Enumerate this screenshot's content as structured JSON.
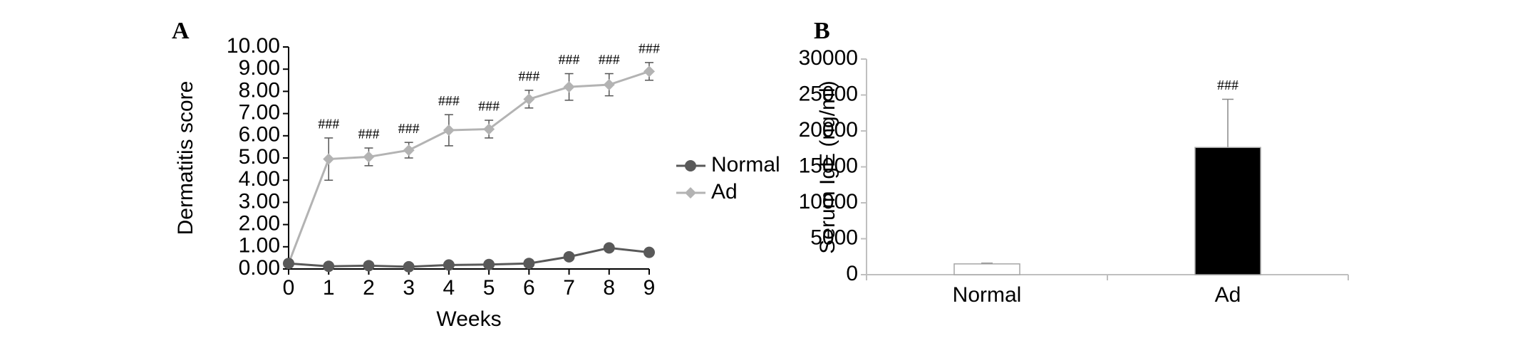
{
  "chart_data": [
    {
      "type": "line",
      "panel": "A",
      "y_label": "Dermatitis score",
      "x_label": "Weeks",
      "x": [
        0,
        1,
        2,
        3,
        4,
        5,
        6,
        7,
        8,
        9
      ],
      "series": [
        {
          "name": "Normal",
          "color": "#595959",
          "marker": "circle",
          "values": [
            0.25,
            0.12,
            0.15,
            0.1,
            0.18,
            0.2,
            0.25,
            0.55,
            0.95,
            0.75
          ]
        },
        {
          "name": "Ad",
          "color": "#b3b3b3",
          "marker": "diamond",
          "values": [
            0.25,
            4.95,
            5.05,
            5.35,
            6.25,
            6.3,
            7.65,
            8.2,
            8.3,
            8.9
          ],
          "errors": [
            null,
            0.95,
            0.4,
            0.35,
            0.7,
            0.4,
            0.4,
            0.6,
            0.5,
            0.4
          ],
          "significance": [
            null,
            "###",
            "###",
            "###",
            "###",
            "###",
            "###",
            "###",
            "###",
            "###"
          ]
        }
      ],
      "xlim": [
        0,
        9
      ],
      "xticks": [
        0,
        1,
        2,
        3,
        4,
        5,
        6,
        7,
        8,
        9
      ],
      "ylim": [
        0,
        10
      ],
      "yticks": [
        {
          "value": 0,
          "label": "0.00"
        },
        {
          "value": 1,
          "label": "1.00"
        },
        {
          "value": 2,
          "label": "2.00"
        },
        {
          "value": 3,
          "label": "3.00"
        },
        {
          "value": 4,
          "label": "4.00"
        },
        {
          "value": 5,
          "label": "5.00"
        },
        {
          "value": 6,
          "label": "6.00"
        },
        {
          "value": 7,
          "label": "7.00"
        },
        {
          "value": 8,
          "label": "8.00"
        },
        {
          "value": 9,
          "label": "9.00"
        },
        {
          "value": 10,
          "label": "10.00"
        }
      ],
      "legend": "right"
    },
    {
      "type": "bar",
      "panel": "B",
      "y_label": "Serum IgE (ng/ml)",
      "categories": [
        "Normal",
        "Ad"
      ],
      "values": [
        1500,
        17700
      ],
      "errors": [
        100,
        6700
      ],
      "colors": [
        "#ffffff",
        "#000000"
      ],
      "significance": [
        null,
        "###"
      ],
      "ylim": [
        0,
        30000
      ],
      "yticks": [
        0,
        5000,
        10000,
        15000,
        20000,
        25000,
        30000
      ]
    }
  ]
}
